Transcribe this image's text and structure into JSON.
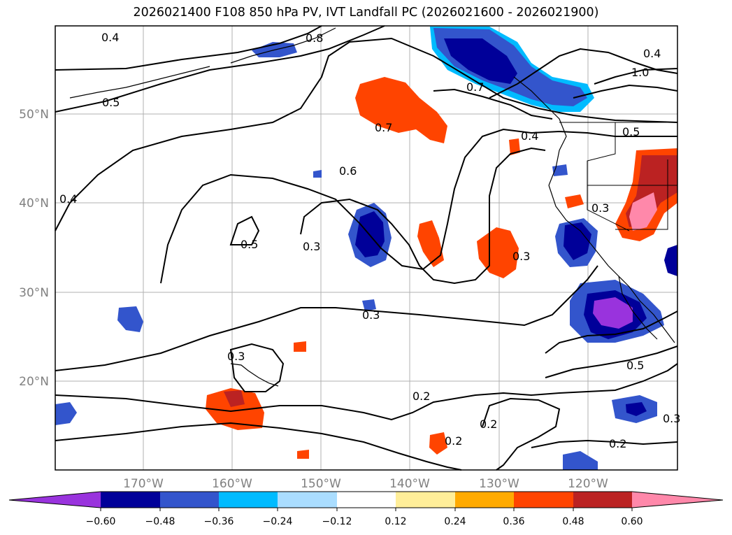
{
  "title": "2026021400 F108 850 hPa PV, IVT Landfall PC (2026021600 - 2026021900)",
  "map": {
    "lat_ticks": [
      "50°N",
      "40°N",
      "30°N",
      "20°N"
    ],
    "lon_ticks": [
      "170°W",
      "160°W",
      "150°W",
      "140°W",
      "130°W",
      "120°W"
    ],
    "contour_labels": [
      "0.4",
      "0.8",
      "1.0",
      "0.5",
      "0.5",
      "0.7",
      "0.7",
      "0.4",
      "0.5",
      "0.6",
      "0.4",
      "0.3",
      "0.5",
      "0.3",
      "0.3",
      "0.3",
      "0.3",
      "0.2",
      "0.2",
      "0.2",
      "0.2",
      "0.4",
      "0.3"
    ]
  },
  "colorbar": {
    "tick_labels": [
      "−0.60",
      "−0.48",
      "−0.36",
      "−0.24",
      "−0.12",
      "0.12",
      "0.24",
      "0.36",
      "0.48",
      "0.60"
    ],
    "colors": [
      "#9933dd",
      "#000099",
      "#3355cc",
      "#00bbff",
      "#aaddff",
      "#ffffff",
      "#ffee99",
      "#ffaa00",
      "#ff4400",
      "#bb2222",
      "#ff88aa",
      "#ff88aa"
    ]
  }
}
